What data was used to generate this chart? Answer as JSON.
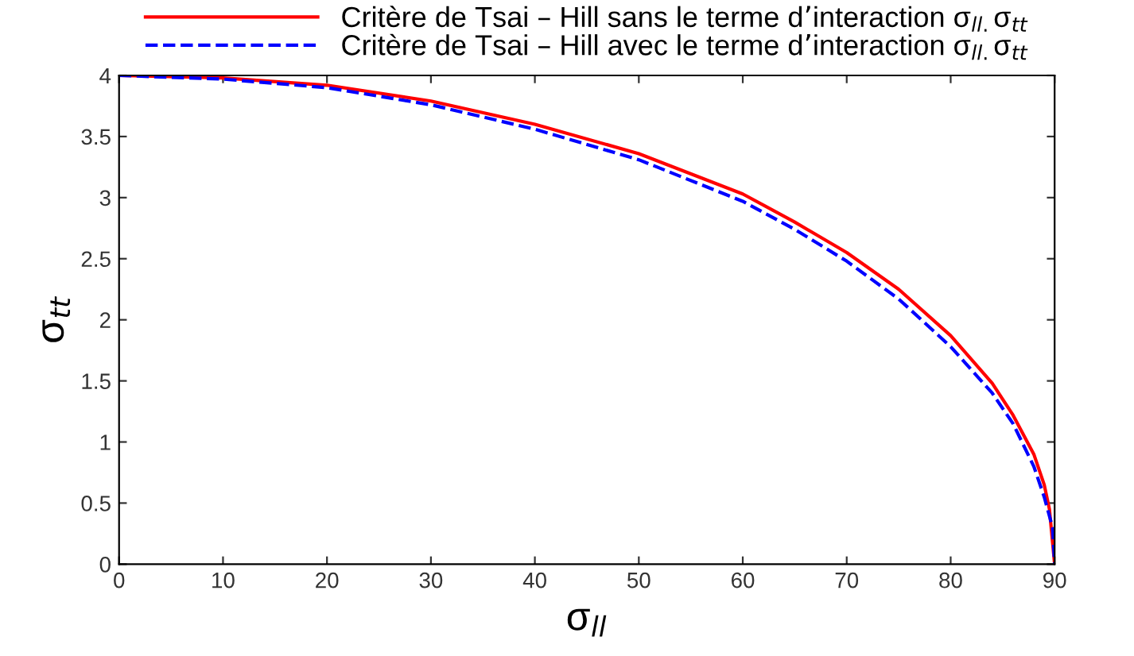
{
  "chart_data": {
    "type": "line",
    "xlabel": "σ$_{ll}$",
    "ylabel": "σ$_{tt}$",
    "xlim": [
      0,
      90
    ],
    "ylim": [
      0,
      4
    ],
    "xticks": [
      0,
      10,
      20,
      30,
      40,
      50,
      60,
      70,
      80,
      90
    ],
    "yticks": [
      0,
      0.5,
      1,
      1.5,
      2,
      2.5,
      3,
      3.5,
      4
    ],
    "grid": false,
    "legend": "top",
    "marker": "none",
    "series": [
      {
        "name": "Critère de Tsai – Hill sans le terme d’interaction σ$_{ll.}$σ$_{tt}$",
        "color": "#ff0000",
        "line_style": "solid",
        "x": [
          0,
          10,
          20,
          30,
          40,
          50,
          60,
          65,
          70,
          75,
          80,
          84,
          86,
          88,
          89,
          89.5,
          90
        ],
        "values": [
          4,
          3.98,
          3.92,
          3.79,
          3.6,
          3.36,
          3.03,
          2.8,
          2.55,
          2.25,
          1.87,
          1.48,
          1.22,
          0.9,
          0.65,
          0.45,
          0
        ]
      },
      {
        "name": "Critère de Tsai – Hill avec le terme d’interaction σ$_{ll.}$σ$_{tt}$",
        "color": "#0000ff",
        "line_style": "dashed",
        "x": [
          0,
          10,
          20,
          30,
          40,
          50,
          60,
          65,
          70,
          75,
          80,
          84,
          86,
          88,
          89,
          89.8,
          90
        ],
        "values": [
          4,
          3.97,
          3.9,
          3.76,
          3.56,
          3.31,
          2.97,
          2.74,
          2.48,
          2.17,
          1.78,
          1.4,
          1.15,
          0.8,
          0.55,
          0.3,
          0
        ]
      }
    ]
  }
}
